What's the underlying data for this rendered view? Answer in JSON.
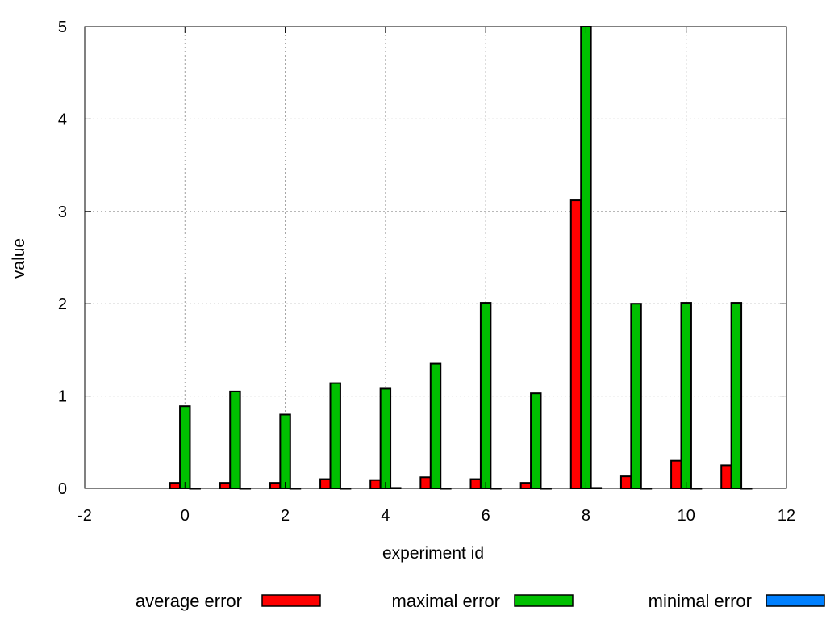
{
  "chart_data": {
    "type": "bar",
    "title": "",
    "xlabel": "experiment id",
    "ylabel": "value",
    "xlim": [
      -2,
      12
    ],
    "ylim": [
      0,
      5
    ],
    "x_ticks": [
      "-2",
      "0",
      "2",
      "4",
      "6",
      "8",
      "10",
      "12"
    ],
    "y_ticks": [
      "0",
      "1",
      "2",
      "3",
      "4",
      "5"
    ],
    "grid": true,
    "legend_position": "bottom",
    "categories": [
      0,
      1,
      2,
      3,
      4,
      5,
      6,
      7,
      8,
      9,
      10,
      11
    ],
    "series": [
      {
        "name": "average error",
        "color": "#ff0000",
        "values": [
          0.06,
          0.06,
          0.06,
          0.1,
          0.09,
          0.12,
          0.1,
          0.06,
          3.12,
          0.13,
          0.3,
          0.25
        ]
      },
      {
        "name": "maximal error",
        "color": "#00c000",
        "values": [
          0.89,
          1.05,
          0.8,
          1.14,
          1.08,
          1.35,
          2.01,
          1.03,
          5.0,
          2.0,
          2.01,
          2.01
        ]
      },
      {
        "name": "minimal error",
        "color": "#0080ff",
        "values": [
          0,
          0,
          0,
          0,
          0.005,
          0,
          0,
          0,
          0.005,
          0,
          0,
          0
        ]
      }
    ]
  }
}
